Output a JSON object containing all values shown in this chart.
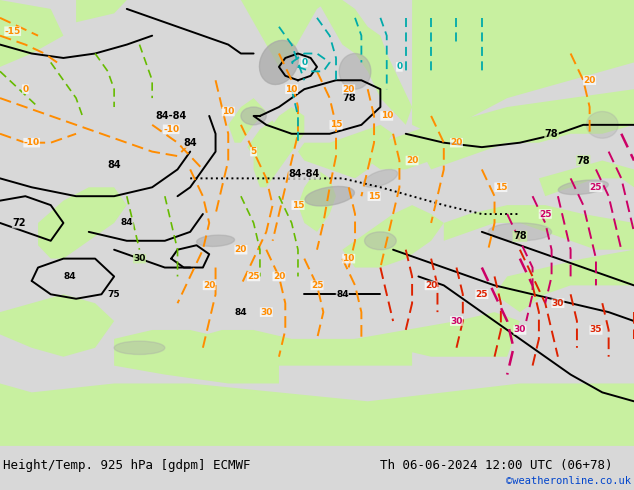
{
  "title_left": "Height/Temp. 925 hPa [gdpm] ECMWF",
  "title_right": "Th 06-06-2024 12:00 UTC (06+78)",
  "credit": "©weatheronline.co.uk",
  "fig_width": 6.34,
  "fig_height": 4.9,
  "dpi": 100,
  "title_fontsize": 9.0,
  "credit_fontsize": 7.5,
  "credit_color": "#0044cc",
  "title_color": "#000000",
  "ocean_color": "#d8d8d8",
  "land_color": "#c8f0a0",
  "mountain_color": "#a8a8a8",
  "bottom_bg": "#ffffff"
}
